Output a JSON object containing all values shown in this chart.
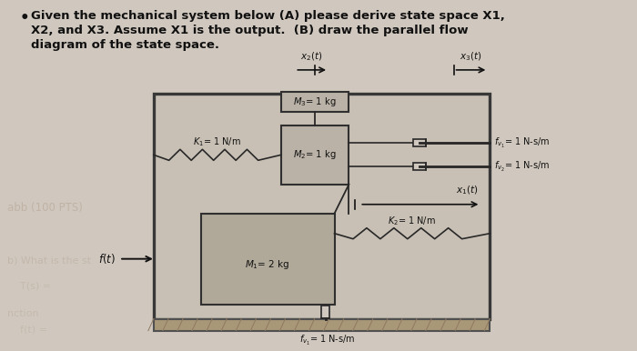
{
  "title_line1": "Given the mechanical system below (A) please derive state space X1,",
  "title_line2": "X2, and X3. Assume X1 is the output.  (B) draw the parallel flow",
  "title_line3": "diagram of the state space.",
  "bg_color": "#d0c8be",
  "text_color": "#111111",
  "faded_color": "#b8a898",
  "outer_box_face": "#c8c0b4",
  "outer_box_edge": "#383838",
  "m2_box_face": "#bab2a6",
  "m2_box_edge": "#303030",
  "m1_box_face": "#b0a898",
  "m1_box_edge": "#303030",
  "ground_face": "#a89878",
  "spring_color": "#282828",
  "K1_label": "$K_1$= 1 N/m",
  "fv1_label": "$f_{v_1}$= 1 N-s/m",
  "fv2_label": "$f_{v_2}$= 1 N-s/m",
  "K2_label": "$K_2$= 1 N/m",
  "fv3_label": "$f_{v_1}$= 1 N-s/m",
  "M3_label": "$M_3$= 1 kg",
  "M2_label": "$M_2$= 1 kg",
  "M1_label": "$M_1$= 2 kg",
  "x1_label": "$x_1(t)$",
  "x2_label": "$x_2(t)$",
  "x3_label": "$x_3(t)$",
  "ft_label": "$f(t)$"
}
